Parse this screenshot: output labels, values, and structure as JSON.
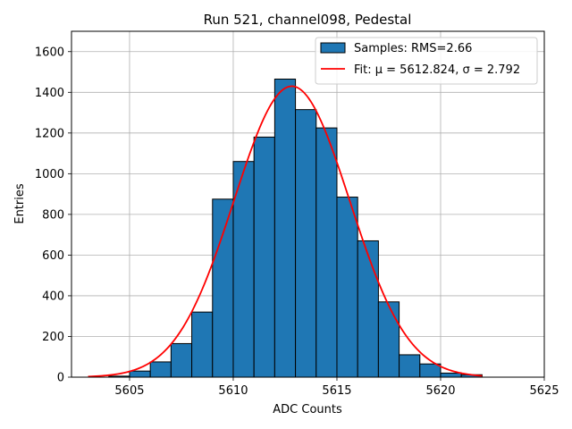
{
  "chart_data": {
    "type": "bar",
    "title": "Run 521, channel098, Pedestal",
    "xlabel": "ADC Counts",
    "ylabel": "Entries",
    "xlim": [
      5602.2,
      5625
    ],
    "ylim": [
      0,
      1700
    ],
    "xticks": [
      5605,
      5610,
      5615,
      5620,
      5625
    ],
    "yticks": [
      0,
      200,
      400,
      600,
      800,
      1000,
      1200,
      1400,
      1600
    ],
    "grid": true,
    "legend_position": "top-right",
    "series": [
      {
        "name": "Samples: RMS=2.66",
        "kind": "histogram",
        "color": "#1f77b4",
        "bin_width": 1,
        "bins": [
          {
            "x": 5604,
            "count": 5
          },
          {
            "x": 5605,
            "count": 30
          },
          {
            "x": 5606,
            "count": 75
          },
          {
            "x": 5607,
            "count": 165
          },
          {
            "x": 5608,
            "count": 320
          },
          {
            "x": 5609,
            "count": 875
          },
          {
            "x": 5610,
            "count": 1060
          },
          {
            "x": 5611,
            "count": 1180
          },
          {
            "x": 5612,
            "count": 1465
          },
          {
            "x": 5613,
            "count": 1315
          },
          {
            "x": 5614,
            "count": 1225
          },
          {
            "x": 5615,
            "count": 885
          },
          {
            "x": 5616,
            "count": 670
          },
          {
            "x": 5617,
            "count": 370
          },
          {
            "x": 5618,
            "count": 110
          },
          {
            "x": 5619,
            "count": 65
          },
          {
            "x": 5620,
            "count": 20
          },
          {
            "x": 5621,
            "count": 12
          }
        ]
      },
      {
        "name": "Fit: μ = 5612.824, σ = 2.792",
        "kind": "gaussian-fit",
        "color": "#ff0000",
        "mu": 5612.824,
        "sigma": 2.792,
        "amplitude": 1430,
        "x_range": [
          5603,
          5622
        ]
      }
    ]
  }
}
